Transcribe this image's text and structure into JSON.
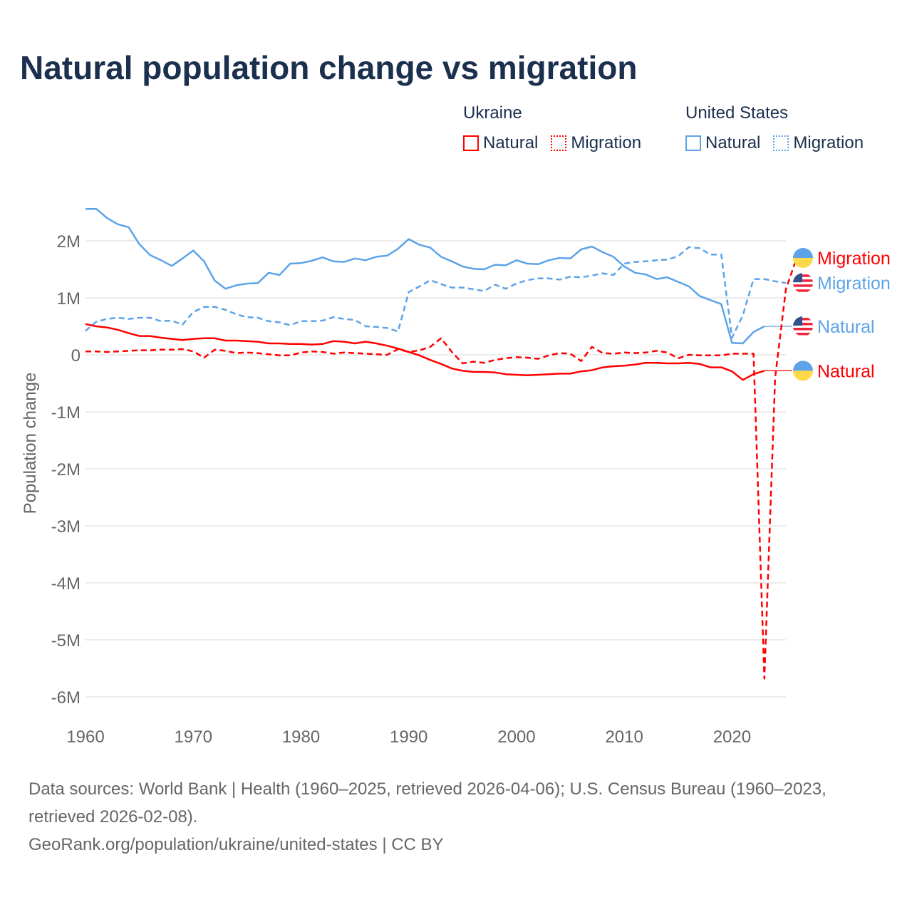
{
  "title": "Natural population change vs migration",
  "legend": {
    "groups": [
      {
        "name": "Ukraine",
        "items": [
          {
            "label": "Natural",
            "style": "solid",
            "color": "#ff0000"
          },
          {
            "label": "Migration",
            "style": "dotted",
            "color": "#ff0000"
          }
        ]
      },
      {
        "name": "United States",
        "items": [
          {
            "label": "Natural",
            "style": "solid",
            "color": "#5da3e8"
          },
          {
            "label": "Migration",
            "style": "dotted",
            "color": "#5da3e8"
          }
        ]
      }
    ]
  },
  "footer": {
    "sources": "Data sources: World Bank | Health (1960–2025, retrieved 2026-04-06); U.S. Census Bureau (1960–2023, retrieved 2026-02-08).",
    "credit": "GeoRank.org/population/ukraine/united-states | CC BY"
  },
  "chart_data": {
    "type": "line",
    "title": "Natural population change vs migration",
    "xlabel": "",
    "ylabel": "Population change",
    "xlim": [
      1960,
      2025
    ],
    "ylim": [
      -6,
      2.6
    ],
    "y_unit": "millions",
    "x_ticks": [
      1960,
      1970,
      1980,
      1990,
      2000,
      2010,
      2020
    ],
    "x_tick_labels": [
      "1960",
      "1970",
      "1980",
      "1990",
      "2000",
      "2010",
      "2020"
    ],
    "y_ticks": [
      2,
      1,
      0,
      -1,
      -2,
      -3,
      -4,
      -5,
      -6
    ],
    "y_tick_labels": [
      "2M",
      "1M",
      "0",
      "-1M",
      "-2M",
      "-3M",
      "-4M",
      "-5M",
      "-6M"
    ],
    "grid": true,
    "series": [
      {
        "name": "United States Natural",
        "label": "Natural",
        "country": "United States",
        "flag": "us-flag",
        "color": "#5da3e8",
        "dash": "solid",
        "start": 1960,
        "values": [
          2.56,
          2.56,
          2.4,
          2.29,
          2.24,
          1.94,
          1.75,
          1.66,
          1.56,
          1.69,
          1.83,
          1.64,
          1.3,
          1.16,
          1.22,
          1.25,
          1.26,
          1.44,
          1.4,
          1.6,
          1.61,
          1.65,
          1.71,
          1.64,
          1.63,
          1.69,
          1.66,
          1.72,
          1.74,
          1.86,
          2.03,
          1.93,
          1.88,
          1.72,
          1.64,
          1.55,
          1.51,
          1.5,
          1.58,
          1.57,
          1.66,
          1.6,
          1.59,
          1.66,
          1.7,
          1.69,
          1.85,
          1.9,
          1.8,
          1.72,
          1.55,
          1.44,
          1.41,
          1.33,
          1.36,
          1.28,
          1.2,
          1.03,
          0.96,
          0.89,
          0.21,
          0.2,
          0.4,
          0.5
        ]
      },
      {
        "name": "United States Migration",
        "label": "Migration",
        "country": "United States",
        "flag": "us-flag",
        "color": "#5da3e8",
        "dash": "dashed",
        "start": 1960,
        "values": [
          0.42,
          0.58,
          0.63,
          0.65,
          0.63,
          0.65,
          0.65,
          0.59,
          0.6,
          0.53,
          0.75,
          0.84,
          0.84,
          0.79,
          0.71,
          0.66,
          0.65,
          0.59,
          0.57,
          0.52,
          0.59,
          0.59,
          0.6,
          0.66,
          0.63,
          0.61,
          0.5,
          0.49,
          0.47,
          0.41,
          1.1,
          1.2,
          1.31,
          1.24,
          1.18,
          1.18,
          1.15,
          1.12,
          1.23,
          1.16,
          1.25,
          1.31,
          1.34,
          1.34,
          1.32,
          1.37,
          1.36,
          1.39,
          1.43,
          1.4,
          1.6,
          1.63,
          1.64,
          1.66,
          1.67,
          1.73,
          1.89,
          1.87,
          1.76,
          1.76,
          0.3,
          0.69,
          1.33,
          1.33,
          1.29,
          1.26
        ]
      },
      {
        "name": "Ukraine Natural",
        "label": "Natural",
        "country": "Ukraine",
        "flag": "ukraine-flag",
        "color": "#ff0000",
        "dash": "solid",
        "start": 1960,
        "values": [
          0.54,
          0.5,
          0.48,
          0.44,
          0.38,
          0.33,
          0.33,
          0.3,
          0.28,
          0.26,
          0.28,
          0.29,
          0.29,
          0.25,
          0.25,
          0.24,
          0.23,
          0.2,
          0.2,
          0.19,
          0.19,
          0.18,
          0.19,
          0.24,
          0.23,
          0.2,
          0.23,
          0.2,
          0.16,
          0.11,
          0.05,
          -0.01,
          -0.09,
          -0.16,
          -0.24,
          -0.28,
          -0.3,
          -0.3,
          -0.31,
          -0.34,
          -0.35,
          -0.36,
          -0.35,
          -0.34,
          -0.33,
          -0.33,
          -0.29,
          -0.27,
          -0.22,
          -0.2,
          -0.19,
          -0.17,
          -0.14,
          -0.14,
          -0.15,
          -0.15,
          -0.14,
          -0.16,
          -0.22,
          -0.22,
          -0.29,
          -0.44,
          -0.34,
          -0.28
        ]
      },
      {
        "name": "Ukraine Migration",
        "label": "Migration",
        "country": "Ukraine",
        "flag": "ukraine-flag",
        "color": "#ff0000",
        "dash": "dashed",
        "start": 1960,
        "values": [
          0.06,
          0.06,
          0.05,
          0.06,
          0.07,
          0.08,
          0.08,
          0.09,
          0.09,
          0.1,
          0.06,
          -0.05,
          0.09,
          0.07,
          0.03,
          0.04,
          0.03,
          0.01,
          -0.01,
          -0.01,
          0.04,
          0.06,
          0.05,
          0.02,
          0.04,
          0.03,
          0.02,
          0.01,
          0.0,
          0.1,
          0.05,
          0.08,
          0.14,
          0.29,
          0.05,
          -0.15,
          -0.12,
          -0.14,
          -0.09,
          -0.06,
          -0.04,
          -0.05,
          -0.07,
          -0.01,
          0.03,
          0.02,
          -0.11,
          0.14,
          0.03,
          0.02,
          0.04,
          0.03,
          0.04,
          0.07,
          0.04,
          -0.06,
          0.0,
          -0.01,
          -0.01,
          -0.01,
          0.02,
          0.02,
          0.02,
          -5.68,
          -0.4,
          1.15,
          1.7
        ]
      }
    ]
  }
}
